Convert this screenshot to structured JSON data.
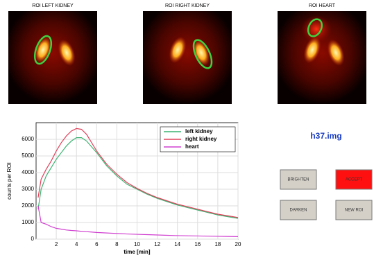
{
  "panels": [
    {
      "title": "ROI LEFT KIDNEY"
    },
    {
      "title": "ROI RIGHT KIDNEY"
    },
    {
      "title": "ROI HEART"
    }
  ],
  "file_name": "h37.img",
  "buttons": [
    "BRIGHTEN",
    "ACCEPT",
    "DARKEN",
    "NEW ROI"
  ],
  "chart_data": {
    "type": "line",
    "xlabel": "time [min]",
    "ylabel": "counts per ROI",
    "x": [
      0.2,
      0.5,
      1,
      1.5,
      2,
      2.5,
      3,
      3.5,
      4,
      4.5,
      5,
      6,
      7,
      8,
      9,
      10,
      11,
      12,
      13,
      14,
      15,
      16,
      17,
      18,
      19,
      20
    ],
    "series": [
      {
        "name": "left kidney",
        "color": "#3cb371",
        "values": [
          1800,
          3000,
          3800,
          4300,
          4800,
          5200,
          5600,
          5900,
          6100,
          6100,
          5900,
          5200,
          4400,
          3800,
          3300,
          3000,
          2700,
          2450,
          2250,
          2050,
          1900,
          1750,
          1600,
          1450,
          1350,
          1250
        ]
      },
      {
        "name": "right kidney",
        "color": "#e0405a",
        "values": [
          2500,
          3600,
          4200,
          4700,
          5300,
          5800,
          6200,
          6500,
          6650,
          6600,
          6300,
          5300,
          4500,
          3900,
          3400,
          3050,
          2750,
          2500,
          2300,
          2100,
          1950,
          1800,
          1650,
          1500,
          1400,
          1300
        ]
      },
      {
        "name": "heart",
        "color": "#d040d0",
        "values": [
          2000,
          1000,
          900,
          750,
          650,
          600,
          550,
          520,
          500,
          470,
          450,
          400,
          370,
          340,
          310,
          290,
          270,
          250,
          230,
          210,
          200,
          190,
          180,
          170,
          160,
          150
        ]
      }
    ],
    "xlim": [
      0,
      20
    ],
    "xticks": [
      2,
      4,
      6,
      8,
      10,
      12,
      14,
      16,
      18,
      20
    ],
    "ylim": [
      0,
      7000
    ],
    "yticks": [
      0,
      1000,
      2000,
      3000,
      4000,
      5000,
      6000
    ],
    "grid": true,
    "legend": "upper right"
  }
}
